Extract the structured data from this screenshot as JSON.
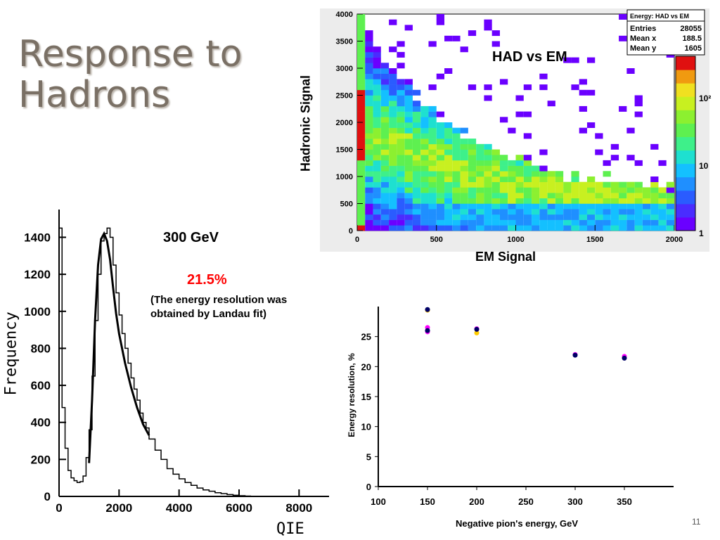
{
  "slide": {
    "title": "Response to\nHadrons",
    "page_number": "11"
  },
  "chart_data": [
    {
      "type": "line",
      "xlabel": "QIE",
      "ylabel": "Frequency",
      "xlim": [
        0,
        9000
      ],
      "ylim": [
        0,
        1550
      ],
      "x_ticks": [
        "0",
        "2000",
        "4000",
        "6000",
        "8000"
      ],
      "y_ticks": [
        "0",
        "200",
        "400",
        "600",
        "800",
        "1000",
        "1200",
        "1400"
      ],
      "annotations": [
        "300 GeV",
        "21.5%",
        "(The energy resolution was obtained by Landau fit)"
      ],
      "series": [
        {
          "x": [
            0,
            100,
            200,
            300,
            400,
            500,
            600,
            700,
            800,
            900,
            1000,
            1100,
            1200,
            1300,
            1400,
            1500,
            1600,
            1700,
            1800,
            1900,
            2000,
            2100,
            2200,
            2300,
            2400,
            2500,
            2600,
            2700,
            2800,
            2900,
            3000,
            3200,
            3400,
            3600,
            3800,
            4000,
            4200,
            4400,
            4600,
            4800,
            5000,
            5200,
            5400,
            5600,
            5800,
            6000,
            6200
          ],
          "y": [
            1450,
            480,
            260,
            140,
            100,
            85,
            75,
            80,
            110,
            210,
            360,
            650,
            950,
            1200,
            1380,
            1420,
            1450,
            1400,
            1250,
            1100,
            980,
            880,
            800,
            720,
            640,
            580,
            520,
            450,
            400,
            370,
            310,
            250,
            200,
            150,
            120,
            95,
            75,
            60,
            45,
            35,
            28,
            20,
            15,
            10,
            6,
            4,
            2
          ]
        },
        {
          "x": [
            1000,
            1100,
            1200,
            1300,
            1400,
            1500,
            1600,
            1700,
            1800,
            1900,
            2000,
            2200,
            2400,
            2600,
            2800,
            3000
          ],
          "y": [
            180,
            520,
            950,
            1250,
            1390,
            1420,
            1380,
            1280,
            1130,
            990,
            880,
            720,
            590,
            480,
            390,
            330
          ]
        }
      ]
    },
    {
      "type": "heatmap",
      "title": "HAD vs EM",
      "xlabel": "EM Signal",
      "ylabel": "Hadronic Signal",
      "xlim": [
        0,
        2000
      ],
      "ylim": [
        0,
        4000
      ],
      "x_ticks": [
        "0",
        "500",
        "1000",
        "1500",
        "2000"
      ],
      "y_ticks": [
        "0",
        "500",
        "1000",
        "1500",
        "2000",
        "2500",
        "3000",
        "3500",
        "4000"
      ],
      "colorbar_ticks": [
        "1",
        "10",
        "10²"
      ],
      "stats_box": {
        "title": "Energy: HAD vs EM",
        "rows": [
          {
            "name": "Entries",
            "value": "28055"
          },
          {
            "name": "Mean x",
            "value": "188.5"
          },
          {
            "name": "Mean y",
            "value": "1605"
          }
        ]
      }
    },
    {
      "type": "scatter",
      "xlabel": "Negative pion's energy, GeV",
      "ylabel": "Energy resolution, %",
      "xlim": [
        100,
        400
      ],
      "ylim": [
        0,
        30
      ],
      "x_ticks": [
        "100",
        "150",
        "200",
        "250",
        "300",
        "350"
      ],
      "y_ticks": [
        "0",
        "5",
        "10",
        "15",
        "20",
        "25"
      ],
      "series": [
        {
          "color": "#ff00ff",
          "x": [
            150,
            150,
            200,
            300,
            350
          ],
          "y": [
            26.5,
            25.8,
            26.3,
            22.0,
            21.7
          ]
        },
        {
          "color": "#ffcc00",
          "x": [
            150,
            200
          ],
          "y": [
            29.4,
            25.6
          ]
        },
        {
          "color": "#000066",
          "x": [
            150,
            150,
            200,
            300,
            350
          ],
          "y": [
            29.5,
            26.0,
            26.2,
            21.9,
            21.4
          ]
        }
      ]
    }
  ]
}
